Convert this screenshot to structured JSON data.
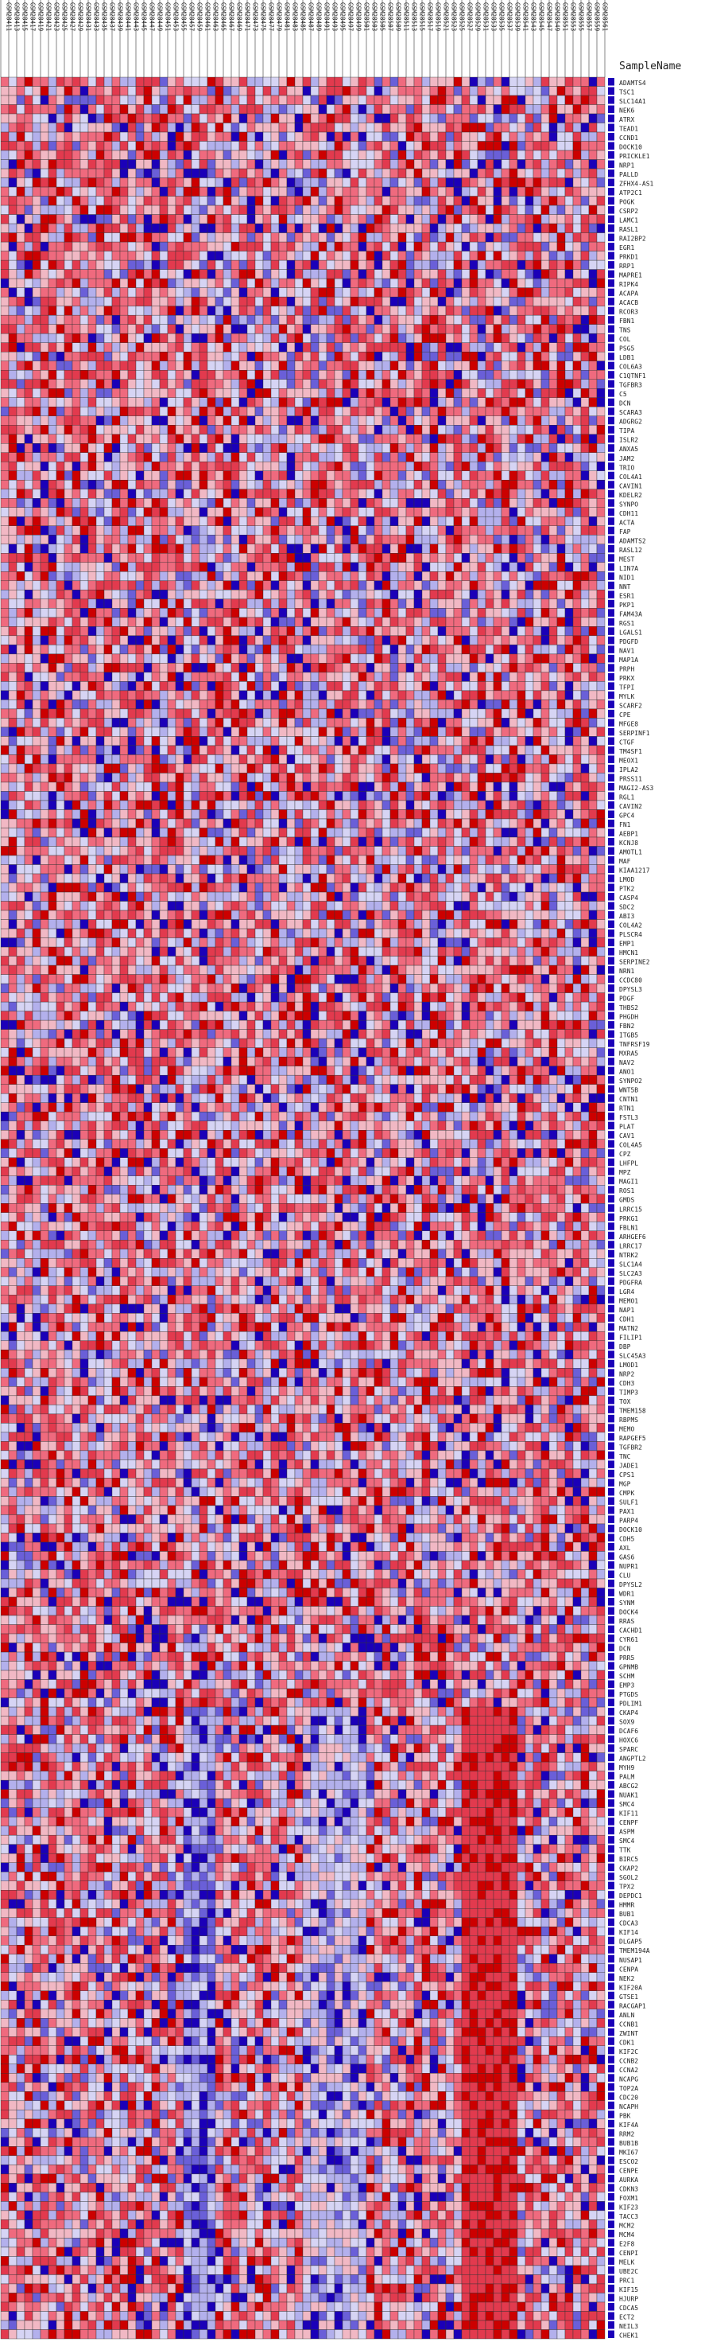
{
  "chart_data": {
    "type": "heatmap",
    "title": "",
    "row_header": "SampleName",
    "columns": [
      "GSM28411",
      "GSM28413",
      "GSM28415",
      "GSM28417",
      "GSM28419",
      "GSM28421",
      "GSM28423",
      "GSM28425",
      "GSM28427",
      "GSM28429",
      "GSM28431",
      "GSM28433",
      "GSM28435",
      "GSM28437",
      "GSM28439",
      "GSM28441",
      "GSM28443",
      "GSM28445",
      "GSM28447",
      "GSM28449",
      "GSM28451",
      "GSM28453",
      "GSM28455",
      "GSM28457",
      "GSM28459",
      "GSM28461",
      "GSM28463",
      "GSM28465",
      "GSM28467",
      "GSM28469",
      "GSM28471",
      "GSM28473",
      "GSM28475",
      "GSM28477",
      "GSM28479",
      "GSM28481",
      "GSM28483",
      "GSM28485",
      "GSM28487",
      "GSM28489",
      "GSM28491",
      "GSM28493",
      "GSM28495",
      "GSM28497",
      "GSM28499",
      "GSM28501",
      "GSM28503",
      "GSM28505",
      "GSM28507",
      "GSM28509",
      "GSM28511",
      "GSM28513",
      "GSM28515",
      "GSM28517",
      "GSM28519",
      "GSM28521",
      "GSM28523",
      "GSM28525",
      "GSM28527",
      "GSM28529",
      "GSM28531",
      "GSM28533",
      "GSM28535",
      "GSM28537",
      "GSM28539",
      "GSM28541",
      "GSM28543",
      "GSM28545",
      "GSM28547",
      "GSM28549",
      "GSM28551",
      "GSM28553",
      "GSM28555",
      "GSM28557",
      "GSM28559",
      "GSM28561"
    ],
    "rows": [
      "ADAMTS4",
      "TSC1",
      "SLC14A1",
      "NEK6",
      "ATRX",
      "TEAD1",
      "CCND1",
      "DOCK10",
      "PRICKLE1",
      "NRP1",
      "PALLD",
      "ZFHX4-AS1",
      "ATP2C1",
      "POGK",
      "CSRP2",
      "LAMC1",
      "RASL1",
      "RAI2BP2",
      "EGR1",
      "PRKD1",
      "RRP1",
      "MAPRE1",
      "RIPK4",
      "ACAPA",
      "ACACB",
      "RCOR3",
      "FBN1",
      "TNS",
      "COL",
      "PSG5",
      "LDB1",
      "COL6A3",
      "C1QTNF1",
      "TGFBR3",
      "C5",
      "DCN",
      "SCARA3",
      "ADGRG2",
      "TIPA",
      "ISLR2",
      "ANXA5",
      "JAM2",
      "TRIO",
      "COL4A1",
      "CAVIN1",
      "KDELR2",
      "SYNPO",
      "CDH11",
      "ACTA",
      "FAP",
      "ADAMTS2",
      "RASL12",
      "MEST",
      "LIN7A",
      "NID1",
      "NNT",
      "ESR1",
      "PKP1",
      "FAM43A",
      "RGS1",
      "LGALS1",
      "PDGFD",
      "NAV1",
      "MAP1A",
      "PRPH",
      "PRKX",
      "TFPI",
      "MYLK",
      "SCARF2",
      "CPE",
      "MFGE8",
      "SERPINF1",
      "CTGF",
      "TM4SF1",
      "MEOX1",
      "IPLA2",
      "PRSS11",
      "MAGI2-AS3",
      "RGL1",
      "CAVIN2",
      "GPC4",
      "FN1",
      "AEBP1",
      "KCNJ8",
      "AMOTL1",
      "MAF",
      "KIAA1217",
      "LMOD",
      "PTK2",
      "CASP4",
      "SDC2",
      "ABI3",
      "COL4A2",
      "PLSCR4",
      "EMP1",
      "HMCN1",
      "SERPINE2",
      "NRN1",
      "CCDC80",
      "DPYSL3",
      "PDGF",
      "THBS2",
      "PHGDH",
      "FBN2",
      "ITGB5",
      "TNFRSF19",
      "MXRA5",
      "NAV2",
      "ANO1",
      "SYNPO2",
      "WNT5B",
      "CNTN1",
      "RTN1",
      "FSTL3",
      "PLAT",
      "CAV1",
      "COL4A5",
      "CPZ",
      "LHFPL",
      "MPZ",
      "MAGI1",
      "ROS1",
      "GMDS",
      "LRRC15",
      "PRKG1",
      "FBLN1",
      "ARHGEF6",
      "LRRC17",
      "NTRK2",
      "SLC1A4",
      "SLC2A3",
      "PDGFRA",
      "LGR4",
      "MEMO1",
      "NAP1",
      "CDH1",
      "MATN2",
      "FILIP1",
      "DBP",
      "SLC45A3",
      "LMOD1",
      "NRP2",
      "CDH3",
      "TIMP3",
      "TOX",
      "TMEM158",
      "RBPMS",
      "MEMO",
      "RAPGEF5",
      "TGFBR2",
      "TNC",
      "JADE1",
      "CPS1",
      "MGP",
      "CMPK",
      "SULF1",
      "PAX1",
      "PARP4",
      "DOCK10",
      "CDH5",
      "AXL",
      "GAS6",
      "NUPR1",
      "CLU",
      "DPYSL2",
      "WDR1",
      "SYNM",
      "DOCK4",
      "RRAS",
      "CACHD1",
      "CYR61",
      "DCN",
      "PRR5",
      "GPNMB",
      "SCHM",
      "EMP3",
      "PTGDS",
      "PDLIM1",
      "CKAP4",
      "SOX9",
      "DCAF6",
      "HOXC6",
      "SPARC",
      "ANGPTL2",
      "MYH9",
      "PALM",
      "ABCG2",
      "NUAK1",
      "SMC4",
      "KIF11",
      "CENPF",
      "ASPM",
      "SMC4",
      "TTK",
      "BIRC5",
      "CKAP2",
      "SGOL2",
      "TPX2",
      "DEPDC1",
      "HMMR",
      "BUB1",
      "CDCA3",
      "KIF14",
      "DLGAP5",
      "TMEM194A",
      "NUSAP1",
      "CENPA",
      "NEK2",
      "KIF20A",
      "GTSE1",
      "RACGAP1",
      "ANLN",
      "CCNB1",
      "ZWINT",
      "CDK1",
      "KIF2C",
      "CCNB2",
      "CCNA2",
      "NCAPG",
      "TOP2A",
      "CDC20",
      "NCAPH",
      "PBK",
      "KIF4A",
      "RRM2",
      "BUB1B",
      "MKI67",
      "ESCO2",
      "CENPE",
      "AURKA",
      "CDKN3",
      "FOXM1",
      "KIF23",
      "TACC3",
      "MCM2",
      "MCM4",
      "E2F8",
      "CENPI",
      "MELK",
      "UBE2C",
      "PRC1",
      "KIF15",
      "HJURP",
      "CDCA5",
      "ECT2",
      "NEIL3",
      "CHEK1"
    ],
    "legend": "none",
    "grid": true
  }
}
